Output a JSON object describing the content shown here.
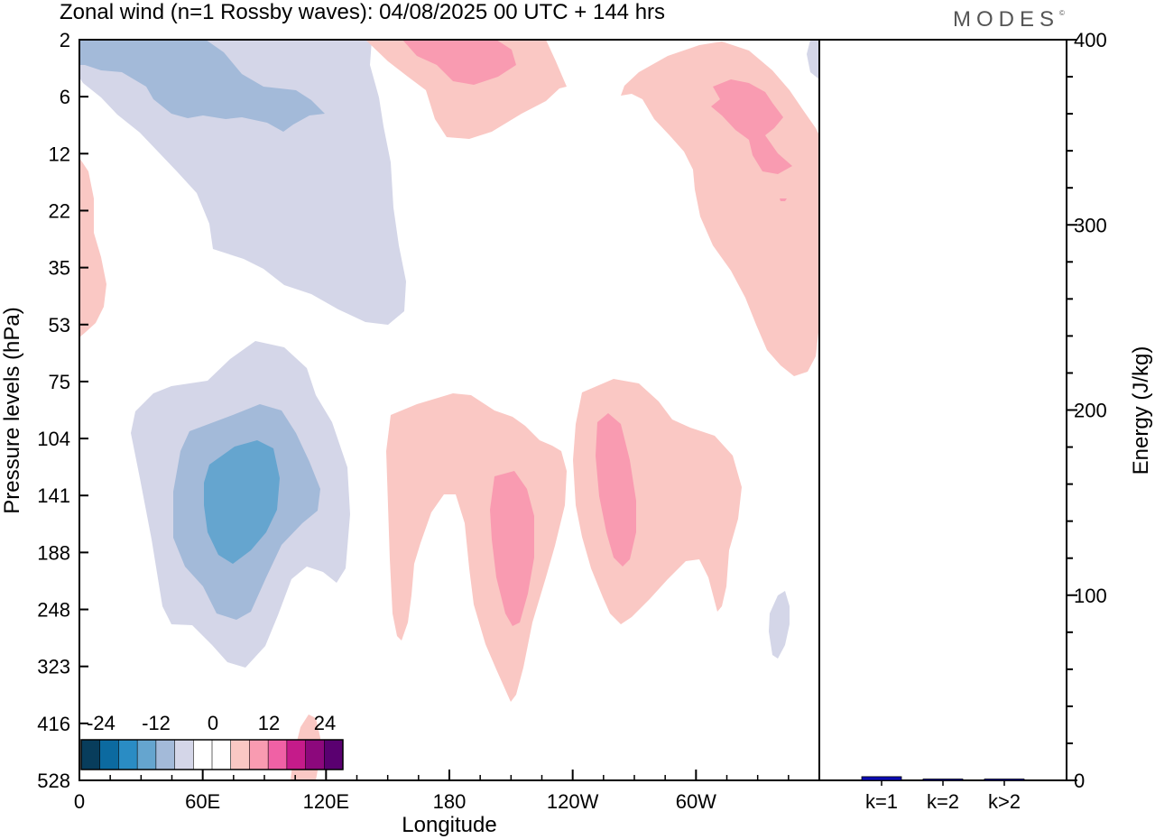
{
  "title": "Zonal wind (n=1 Rossby waves):  04/08/2025  00 UTC  + 144 hrs",
  "brand": "MODES",
  "brand_mark": "©",
  "chart_data": [
    {
      "type": "heatmap",
      "title": "Zonal wind (n=1 Rossby waves):  04/08/2025  00 UTC  + 144 hrs",
      "xlabel": "Longitude",
      "ylabel": "Pressure levels (hPa)",
      "x_ticks": [
        {
          "lon": 0,
          "label": "0"
        },
        {
          "lon": 60,
          "label": "60E"
        },
        {
          "lon": 120,
          "label": "120E"
        },
        {
          "lon": 180,
          "label": "180"
        },
        {
          "lon": 240,
          "label": "120W"
        },
        {
          "lon": 300,
          "label": "60W"
        }
      ],
      "xlim": [
        0,
        360
      ],
      "y_levels": [
        "2",
        "6",
        "12",
        "22",
        "35",
        "53",
        "75",
        "104",
        "141",
        "188",
        "248",
        "323",
        "416",
        "528"
      ],
      "colorbar": {
        "tick_labels": [
          "-24",
          "-12",
          "0",
          "12",
          "24"
        ],
        "colors": [
          "#083d5c",
          "#0c6aa0",
          "#2a8cc4",
          "#65a5cf",
          "#a3bad9",
          "#d4d6e8",
          "#ffffff",
          "#ffffff",
          "#fac8c4",
          "#f99bb1",
          "#f061a5",
          "#c51b8a",
          "#8c087c",
          "#5a0070"
        ]
      },
      "features": [
        {
          "sign": "negative",
          "level": 1,
          "lon": [
            0,
            158
          ],
          "pressure_levels": [
            "2",
            "53"
          ]
        },
        {
          "sign": "negative",
          "level": 2,
          "lon": [
            0,
            120
          ],
          "pressure_levels": [
            "2",
            "6"
          ]
        },
        {
          "sign": "negative",
          "level": 1,
          "lon": [
            24,
            132
          ],
          "pressure_levels": [
            "75",
            "323"
          ]
        },
        {
          "sign": "negative",
          "level": 2,
          "lon": [
            45,
            117
          ],
          "pressure_levels": [
            "104",
            "248"
          ]
        },
        {
          "sign": "negative",
          "level": 3,
          "lon": [
            60,
            97
          ],
          "pressure_levels": [
            "104",
            "188"
          ]
        },
        {
          "sign": "positive",
          "level": 1,
          "lon": [
            0,
            13
          ],
          "pressure_levels": [
            "12",
            "53"
          ]
        },
        {
          "sign": "positive",
          "level": 1,
          "lon": [
            142,
            238
          ],
          "pressure_levels": [
            "2",
            "12"
          ]
        },
        {
          "sign": "positive",
          "level": 2,
          "lon": [
            167,
            212
          ],
          "pressure_levels": [
            "2",
            "6"
          ]
        },
        {
          "sign": "positive",
          "level": 1,
          "lon": [
            264,
            360
          ],
          "pressure_levels": [
            "2",
            "75"
          ]
        },
        {
          "sign": "positive",
          "level": 2,
          "lon": [
            306,
            345
          ],
          "pressure_levels": [
            "6",
            "12"
          ]
        },
        {
          "sign": "positive",
          "level": 1,
          "lon": [
            148,
            240
          ],
          "pressure_levels": [
            "75",
            "416"
          ]
        },
        {
          "sign": "positive",
          "level": 2,
          "lon": [
            192,
            211
          ],
          "pressure_levels": [
            "141",
            "248"
          ]
        },
        {
          "sign": "positive",
          "level": 1,
          "lon": [
            240,
            321
          ],
          "pressure_levels": [
            "75",
            "248"
          ]
        },
        {
          "sign": "positive",
          "level": 2,
          "lon": [
            252,
            268
          ],
          "pressure_levels": [
            "104",
            "188"
          ]
        },
        {
          "sign": "negative",
          "level": 1,
          "lon": [
            336,
            345
          ],
          "pressure_levels": [
            "248",
            "323"
          ]
        },
        {
          "sign": "positive",
          "level": 1,
          "lon": [
            102,
            120
          ],
          "pressure_levels": [
            "416",
            "528"
          ]
        }
      ]
    },
    {
      "type": "bar",
      "categories": [
        "k=1",
        "k=2",
        "k>2"
      ],
      "values": [
        2,
        0.3,
        0.3
      ],
      "ylabel": "Energy (J/kg)",
      "ylim": [
        0,
        400
      ],
      "y_ticks": [
        "0",
        "100",
        "200",
        "300",
        "400"
      ],
      "bar_color": "#0a0ab4"
    }
  ]
}
